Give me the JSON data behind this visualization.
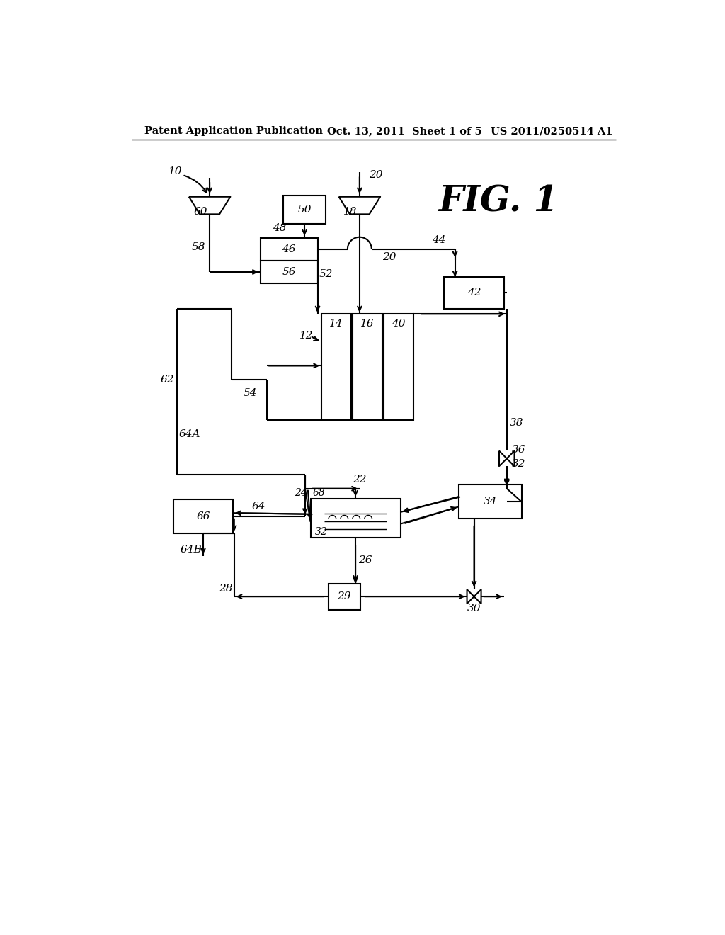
{
  "title_left": "Patent Application Publication",
  "title_mid": "Oct. 13, 2011  Sheet 1 of 5",
  "title_right": "US 2011/0250514 A1",
  "fig_label": "FIG. 1",
  "background_color": "#ffffff",
  "line_color": "#000000",
  "header_fontsize": 10.5,
  "label_fontsize": 10,
  "fig_label_fontsize": 36
}
